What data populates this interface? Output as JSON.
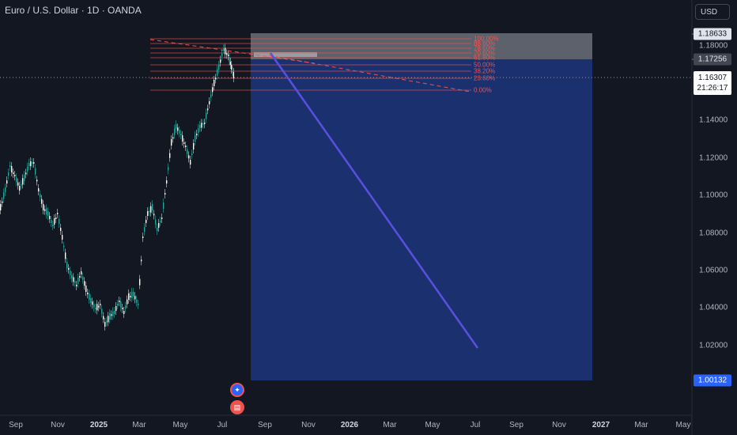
{
  "header": {
    "title": "Euro / U.S. Dollar · 1D · OANDA"
  },
  "currency_button": "USD",
  "price_axis": {
    "ticks": [
      "1.18000",
      "1.14000",
      "1.12000",
      "1.10000",
      "1.08000",
      "1.06000",
      "1.04000",
      "1.02000"
    ],
    "top_target": "1.18633",
    "entry": "1.17256",
    "current": "1.16307",
    "countdown": "21:26:17",
    "stop_target": "1.00132"
  },
  "time_axis": [
    "Sep",
    "Nov",
    "2025",
    "Mar",
    "May",
    "Jul",
    "Sep",
    "Nov",
    "2026",
    "Mar",
    "May",
    "Jul",
    "Sep",
    "Nov",
    "2027",
    "Mar",
    "May"
  ],
  "fib_levels": [
    "100.00%",
    "88.60%",
    "78.60%",
    "70.60%",
    "61.80%",
    "50.00%",
    "38.20%",
    "23.60%",
    "0.00%"
  ],
  "colors": {
    "background": "#131722",
    "candle_up": "#26a69a",
    "candle_down": "#ffffff",
    "fib": "#ef5350",
    "short_zone": "#1e3a8a",
    "target_line": "#5b4fe0"
  },
  "events": {
    "earnings": "icon-1",
    "flag": "us-flag-icon"
  }
}
